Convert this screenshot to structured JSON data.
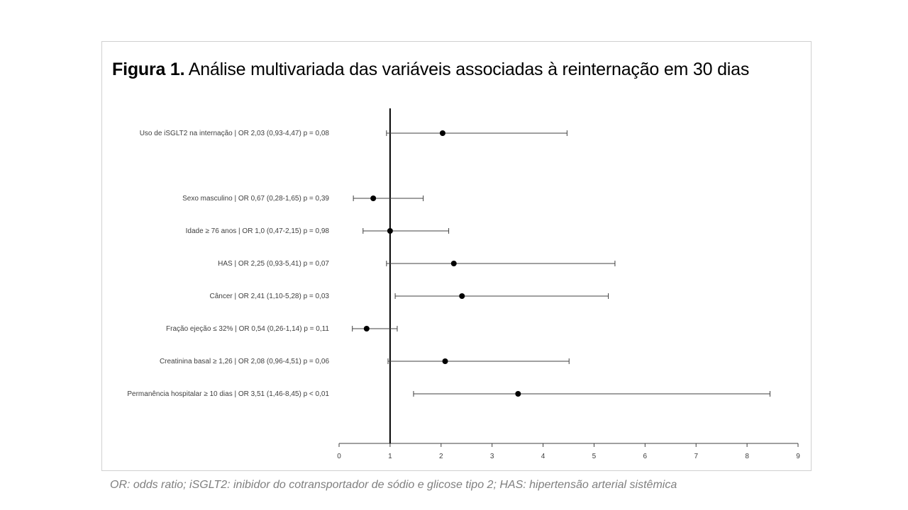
{
  "figure": {
    "title_bold": "Figura 1.",
    "title_rest": " Análise multivariada das variáveis associadas à reinternação em 30 dias"
  },
  "footnote": "OR: odds ratio; iSGLT2: inibidor do cotransportador de sódio e glicose tipo 2; HAS: hipertensão arterial sistêmica",
  "chart_data": {
    "type": "forest",
    "title": "Figura 1. Análise multivariada das variáveis associadas à reinternação em 30 dias",
    "xlim": [
      0,
      9
    ],
    "x_ticks": [
      0,
      1,
      2,
      3,
      4,
      5,
      6,
      7,
      8,
      9
    ],
    "reference_line": 1,
    "grid": false,
    "rows": [
      {
        "label": "Uso de iSGLT2 na internação  |  OR 2,03  (0,93-4,47)  p = 0,08",
        "or": 2.03,
        "ci_low": 0.93,
        "ci_high": 4.47
      },
      {
        "label": "Sexo masculino  |  OR 0,67  (0,28-1,65)  p = 0,39",
        "or": 0.67,
        "ci_low": 0.28,
        "ci_high": 1.65
      },
      {
        "label": "Idade ≥ 76 anos  |  OR 1,0    (0,47-2,15)  p = 0,98",
        "or": 1.0,
        "ci_low": 0.47,
        "ci_high": 2.15
      },
      {
        "label": "HAS  |  OR 2,25  (0,93-5,41)  p = 0,07",
        "or": 2.25,
        "ci_low": 0.93,
        "ci_high": 5.41
      },
      {
        "label": "Câncer  |  OR 2,41  (1,10-5,28)  p = 0,03",
        "or": 2.41,
        "ci_low": 1.1,
        "ci_high": 5.28
      },
      {
        "label": "Fração ejeção ≤ 32%  |  OR 0,54  (0,26-1,14)  p = 0,11",
        "or": 0.54,
        "ci_low": 0.26,
        "ci_high": 1.14
      },
      {
        "label": "Creatinina basal ≥ 1,26  |  OR 2,08  (0,96-4,51)  p = 0,06",
        "or": 2.08,
        "ci_low": 0.96,
        "ci_high": 4.51
      },
      {
        "label": "Permanência hospitalar ≥ 10 dias  |  OR 3,51  (1,46-8,45)  p < 0,01",
        "or": 3.51,
        "ci_low": 1.46,
        "ci_high": 8.45
      }
    ],
    "colors": {
      "marker": "#000000",
      "ci_line": "#404040",
      "ref_line": "#000000",
      "axis": "#404040"
    }
  }
}
